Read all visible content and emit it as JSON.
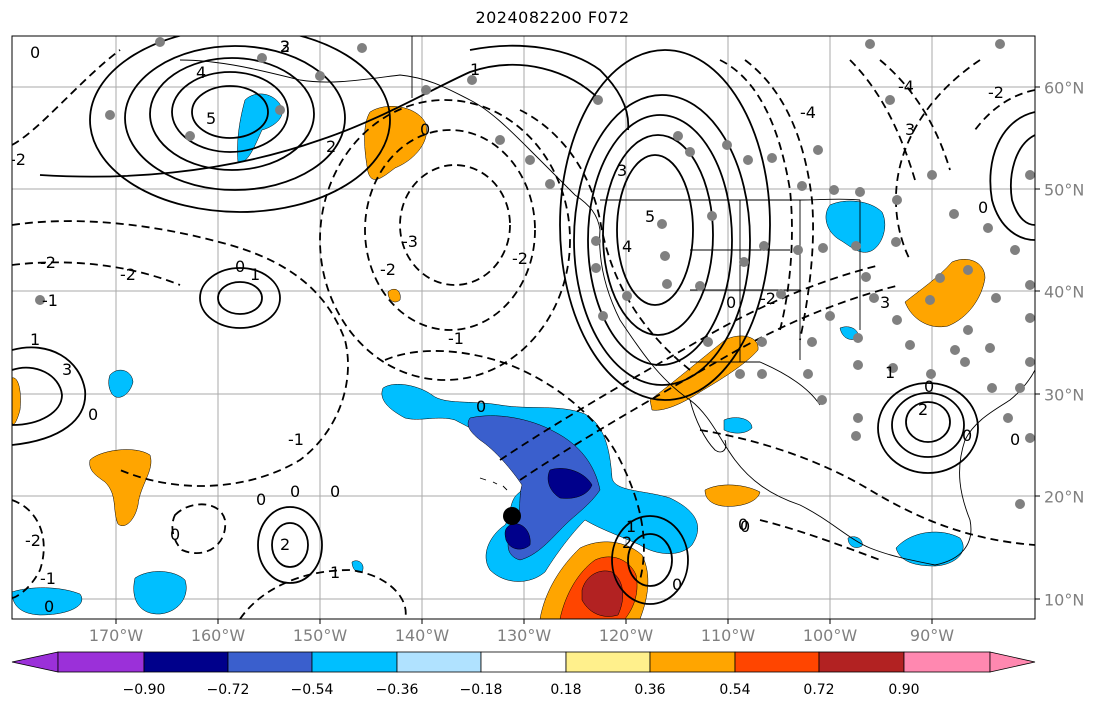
{
  "title": "2024082200 F072",
  "lon_labels": [
    "170°W",
    "160°W",
    "150°W",
    "140°W",
    "130°W",
    "120°W",
    "110°W",
    "100°W",
    "90°W"
  ],
  "lat_labels": [
    "60°N",
    "50°N",
    "40°N",
    "30°N",
    "20°N",
    "10°N"
  ],
  "colorbar": {
    "ticks": [
      "−0.90",
      "−0.72",
      "−0.54",
      "−0.36",
      "−0.18",
      "0.18",
      "0.36",
      "0.54",
      "0.72",
      "0.90"
    ],
    "colors": [
      "#9b30d9",
      "#00008b",
      "#3a5fcd",
      "#00bfff",
      "#b0e2ff",
      "#ffffff",
      "#fff08c",
      "#ffa500",
      "#ff4500",
      "#b22222",
      "#ff88b0"
    ]
  },
  "contour_labels": [
    "0",
    "-3",
    "4",
    "5",
    "1",
    "2",
    "-1",
    "-2",
    "3",
    "-4"
  ],
  "colors": {
    "grid": "#aaaaaa",
    "station_dot": "#808080",
    "storm_marker": "#000000"
  }
}
